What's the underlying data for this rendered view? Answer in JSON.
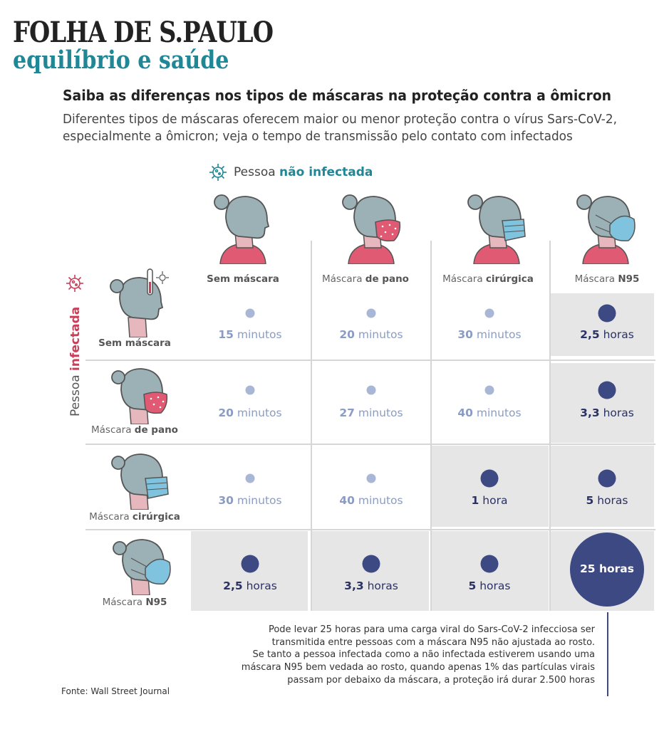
{
  "header": {
    "brand": "FOLHA DE S.PAULO",
    "section": "equilíbrio e saúde",
    "title": "Saiba as diferenças nos tipos de máscaras na proteção contra a ômicron",
    "subtitle_line1": "Diferentes tipos de máscaras oferecem maior ou menor proteção contra o vírus Sars-CoV-2,",
    "subtitle_line2": "especialmente a ômicron; veja o tempo de transmissão pelo contato com infectados"
  },
  "axes": {
    "columns_label_prefix": "Pessoa ",
    "columns_label_bold": "não infectada",
    "rows_label_prefix": "Pessoa ",
    "rows_label_bold": "infectada"
  },
  "chart_data": {
    "type": "table",
    "title": "Saiba as diferenças nos tipos de máscaras na proteção contra a ômicron",
    "columns_title": "Pessoa não infectada",
    "rows_title": "Pessoa infectada",
    "columns": [
      {
        "label": "Sem máscara",
        "prefix": "",
        "bold": "Sem máscara"
      },
      {
        "label": "Máscara de pano",
        "prefix": "Máscara ",
        "bold": "de pano"
      },
      {
        "label": "Máscara cirúrgica",
        "prefix": "Máscara ",
        "bold": "cirúrgica"
      },
      {
        "label": "Máscara N95",
        "prefix": "Máscara ",
        "bold": "N95"
      }
    ],
    "rows": [
      {
        "label": "Sem máscara",
        "prefix": "",
        "bold": "Sem máscara"
      },
      {
        "label": "Máscara de pano",
        "prefix": "Máscara ",
        "bold": "de pano"
      },
      {
        "label": "Máscara cirúrgica",
        "prefix": "Máscara ",
        "bold": "cirúrgica"
      },
      {
        "label": "Máscara N95",
        "prefix": "Máscara ",
        "bold": "N95"
      }
    ],
    "unit": "hours",
    "values_hours": [
      [
        0.25,
        0.333,
        0.5,
        2.5
      ],
      [
        0.333,
        0.45,
        0.667,
        3.3
      ],
      [
        0.5,
        0.667,
        1,
        5
      ],
      [
        2.5,
        3.3,
        5,
        25
      ]
    ],
    "labels": [
      [
        {
          "num": "15",
          "unit": " minutos"
        },
        {
          "num": "20",
          "unit": " minutos"
        },
        {
          "num": "30",
          "unit": " minutos"
        },
        {
          "num": "2,5",
          "unit": " horas"
        }
      ],
      [
        {
          "num": "20",
          "unit": " minutos"
        },
        {
          "num": "27",
          "unit": " minutos"
        },
        {
          "num": "40",
          "unit": " minutos"
        },
        {
          "num": "3,3",
          "unit": " horas"
        }
      ],
      [
        {
          "num": "30",
          "unit": " minutos"
        },
        {
          "num": "40",
          "unit": " minutos"
        },
        {
          "num": "1",
          "unit": " hora"
        },
        {
          "num": "5",
          "unit": " horas"
        }
      ],
      [
        {
          "num": "2,5",
          "unit": " horas"
        },
        {
          "num": "3,3",
          "unit": " horas"
        },
        {
          "num": "5",
          "unit": " horas"
        },
        {
          "num": "25",
          "unit": " horas"
        }
      ]
    ]
  },
  "colors": {
    "short_dot": "#a9b7d7",
    "short_text": "#8a9cc4",
    "long_dot": "#3d4982",
    "long_text": "#2b3163",
    "shade": "#e6e6e6",
    "teal": "#1f8796",
    "pink": "#c93f5a"
  },
  "note_lines": [
    "Pode levar 25 horas para uma carga viral do Sars-CoV-2 infecciosa ser",
    "transmitida entre pessoas com a máscara N95 não ajustada ao rosto.",
    "Se tanto a pessoa infectada como a não infectada estiverem usando uma",
    "máscara N95 bem vedada ao rosto, quando apenas 1% das partículas virais",
    "passam por debaixo da máscara, a proteção irá durar 2.500 horas"
  ],
  "source": "Fonte: Wall Street Journal"
}
